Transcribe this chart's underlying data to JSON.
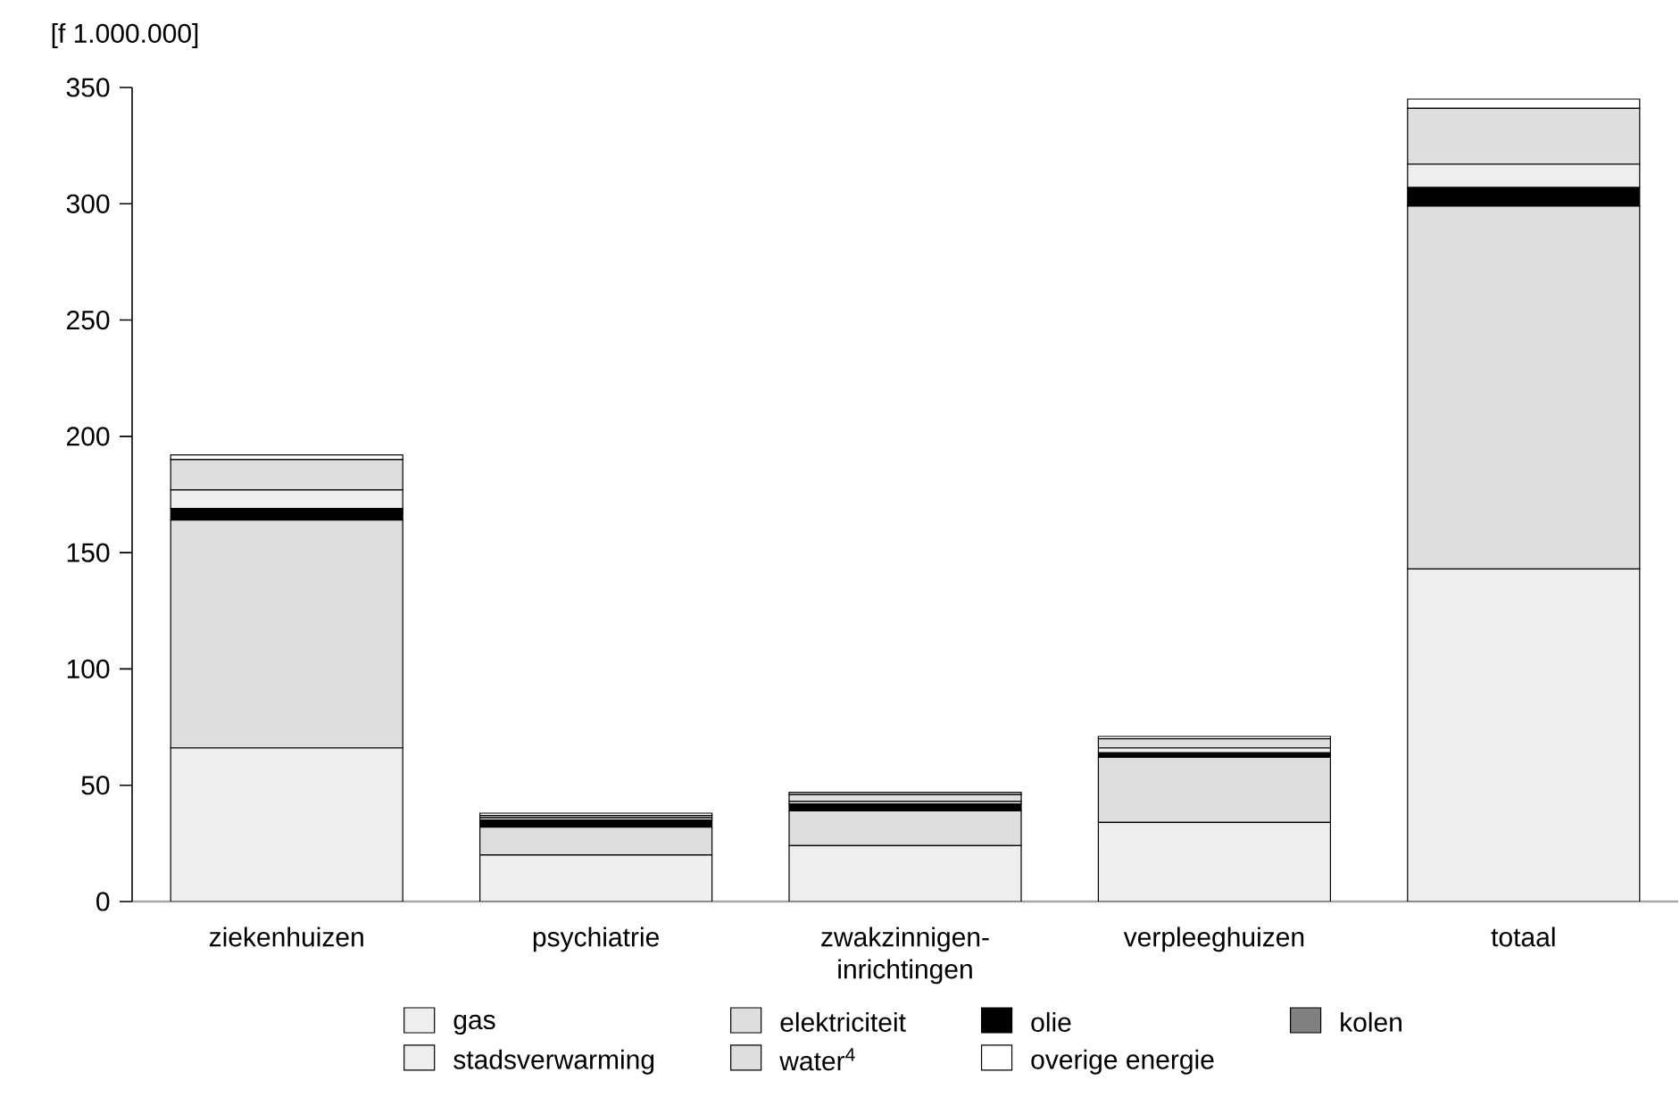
{
  "chart_data": {
    "type": "bar",
    "stacked": true,
    "ylabel": "[f 1.000.000]",
    "categories": [
      "ziekenhuizen",
      "psychiatrie",
      "zwakzinnigen-inrichtingen",
      "verpleeghuizen",
      "totaal"
    ],
    "series": [
      {
        "name": "gas",
        "color": "#eeeeee",
        "values": [
          66,
          20,
          24,
          34,
          143
        ]
      },
      {
        "name": "elektriciteit",
        "color": "#dedede",
        "values": [
          98,
          12,
          15,
          28,
          156
        ]
      },
      {
        "name": "olie",
        "color": "#000000",
        "values": [
          5,
          3,
          3,
          2,
          8
        ]
      },
      {
        "name": "kolen",
        "color": "#808080",
        "values": [
          0,
          0,
          0,
          0,
          0
        ]
      },
      {
        "name": "stadsverwarming",
        "color": "#eeeeee",
        "values": [
          8,
          1,
          1,
          2,
          10
        ]
      },
      {
        "name": "water$^{4}$",
        "color": "#dedede",
        "values": [
          13,
          1,
          3,
          4,
          24
        ]
      },
      {
        "name": "overige energie",
        "color": "#ffffff",
        "values": [
          2,
          1,
          1,
          1,
          4
        ]
      }
    ],
    "ylim": [
      0,
      350
    ],
    "yticks": [
      0,
      50,
      100,
      150,
      200,
      250,
      300,
      350
    ],
    "legend": "bottom"
  }
}
